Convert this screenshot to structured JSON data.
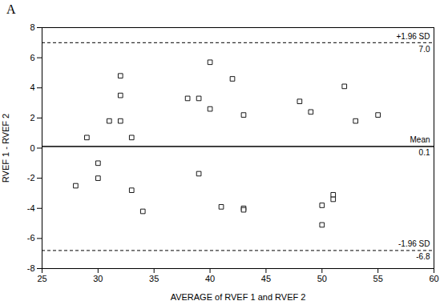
{
  "chart_data": {
    "type": "scatter",
    "title": "A",
    "x": [
      28,
      29,
      30,
      30,
      31,
      32,
      32,
      32,
      33,
      33,
      34,
      38,
      39,
      39,
      40,
      40,
      41,
      42,
      43,
      43,
      43,
      48,
      49,
      50,
      50,
      51,
      51,
      52,
      53,
      55
    ],
    "values": [
      -2.5,
      0.7,
      -1.0,
      -2.0,
      1.8,
      1.8,
      3.5,
      4.8,
      0.7,
      -2.8,
      -4.2,
      3.3,
      3.3,
      -1.7,
      2.6,
      5.7,
      -3.9,
      4.6,
      2.2,
      -4.0,
      -4.1,
      3.1,
      2.4,
      -3.8,
      -5.1,
      -3.1,
      -3.4,
      4.1,
      1.8,
      2.2
    ],
    "marker": "square",
    "reference_lines": [
      {
        "value": 0.1,
        "label": "Mean",
        "value_label": "0.1",
        "line_style": "solid"
      },
      {
        "value": 7.0,
        "label": "+1.96 SD",
        "value_label": "7.0",
        "line_style": "dashed"
      },
      {
        "value": -6.8,
        "label": "-1.96 SD",
        "value_label": "-6.8",
        "line_style": "dashed"
      }
    ],
    "xlabel": "AVERAGE of RVEF 1 and RVEF 2",
    "ylabel": "RVEF 1 - RVEF 2",
    "xlim": [
      25,
      60
    ],
    "ylim": [
      -8,
      8
    ],
    "xticks": [
      25,
      30,
      35,
      40,
      45,
      50,
      55,
      60
    ],
    "yticks": [
      -8,
      -6,
      -4,
      -2,
      0,
      2,
      4,
      6,
      8
    ],
    "grid": false
  }
}
